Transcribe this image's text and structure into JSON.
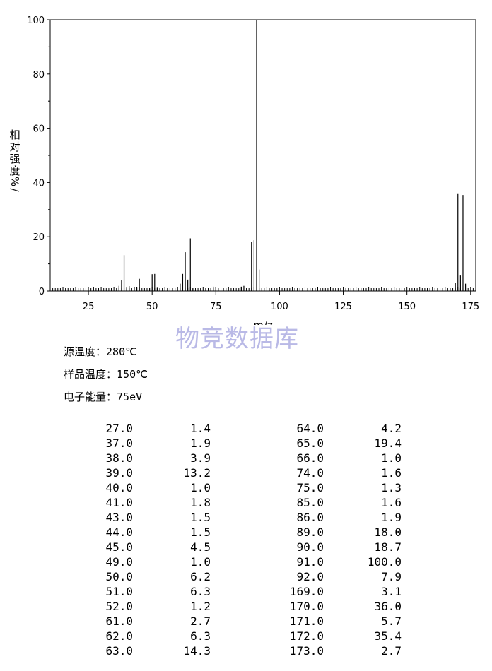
{
  "chart_data": {
    "type": "bar",
    "ylabel": "相对强度 %/",
    "xlabel": "m/z",
    "xlim": [
      10,
      177
    ],
    "ylim": [
      0,
      100
    ],
    "xticks": [
      25,
      50,
      75,
      100,
      125,
      150,
      175
    ],
    "yticks": [
      0,
      20,
      40,
      60,
      80,
      100
    ],
    "peaks": [
      {
        "mz": "27.0",
        "intensity": "1.4"
      },
      {
        "mz": "37.0",
        "intensity": "1.9"
      },
      {
        "mz": "38.0",
        "intensity": "3.9"
      },
      {
        "mz": "39.0",
        "intensity": "13.2"
      },
      {
        "mz": "40.0",
        "intensity": "1.0"
      },
      {
        "mz": "41.0",
        "intensity": "1.8"
      },
      {
        "mz": "43.0",
        "intensity": "1.5"
      },
      {
        "mz": "44.0",
        "intensity": "1.5"
      },
      {
        "mz": "45.0",
        "intensity": "4.5"
      },
      {
        "mz": "49.0",
        "intensity": "1.0"
      },
      {
        "mz": "50.0",
        "intensity": "6.2"
      },
      {
        "mz": "51.0",
        "intensity": "6.3"
      },
      {
        "mz": "52.0",
        "intensity": "1.2"
      },
      {
        "mz": "61.0",
        "intensity": "2.7"
      },
      {
        "mz": "62.0",
        "intensity": "6.3"
      },
      {
        "mz": "63.0",
        "intensity": "14.3"
      },
      {
        "mz": "64.0",
        "intensity": "4.2"
      },
      {
        "mz": "65.0",
        "intensity": "19.4"
      },
      {
        "mz": "66.0",
        "intensity": "1.0"
      },
      {
        "mz": "74.0",
        "intensity": "1.6"
      },
      {
        "mz": "75.0",
        "intensity": "1.3"
      },
      {
        "mz": "85.0",
        "intensity": "1.6"
      },
      {
        "mz": "86.0",
        "intensity": "1.9"
      },
      {
        "mz": "89.0",
        "intensity": "18.0"
      },
      {
        "mz": "90.0",
        "intensity": "18.7"
      },
      {
        "mz": "91.0",
        "intensity": "100.0"
      },
      {
        "mz": "92.0",
        "intensity": "7.9"
      },
      {
        "mz": "169.0",
        "intensity": "3.1"
      },
      {
        "mz": "170.0",
        "intensity": "36.0"
      },
      {
        "mz": "171.0",
        "intensity": "5.7"
      },
      {
        "mz": "172.0",
        "intensity": "35.4"
      },
      {
        "mz": "173.0",
        "intensity": "2.7"
      }
    ]
  },
  "watermark": "物竞数据库",
  "conditions": [
    {
      "label": "源温度：",
      "value": "280℃"
    },
    {
      "label": "样品温度：",
      "value": "150℃"
    },
    {
      "label": "电子能量：",
      "value": "75eV"
    }
  ]
}
